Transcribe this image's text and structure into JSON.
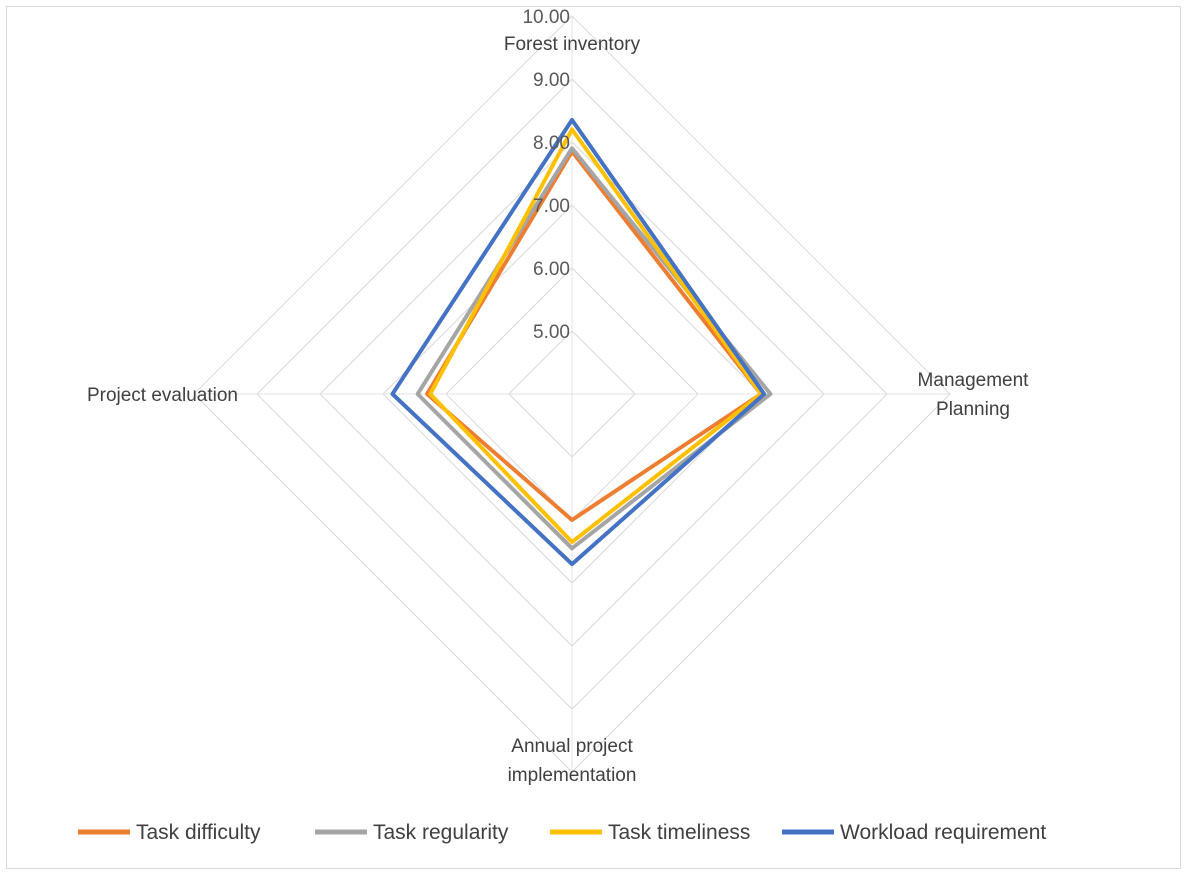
{
  "chart_data": {
    "type": "radar",
    "title": "",
    "axes": [
      {
        "label_lines": [
          "Forest inventory"
        ]
      },
      {
        "label_lines": [
          "Management",
          "Planning"
        ]
      },
      {
        "label_lines": [
          "Annual project",
          "implementation"
        ]
      },
      {
        "label_lines": [
          "Project evaluation"
        ]
      }
    ],
    "r_range": [
      4.0,
      10.0
    ],
    "ticks": [
      "5.00",
      "6.00",
      "7.00",
      "8.00",
      "9.00",
      "10.00"
    ],
    "tick_values": [
      5,
      6,
      7,
      8,
      9,
      10
    ],
    "grid": true,
    "legend_position": "bottom",
    "series": [
      {
        "name": "Task difficulty",
        "color": "#ED7D31",
        "values": [
          7.85,
          7.0,
          6.0,
          6.3
        ]
      },
      {
        "name": "Task regularity",
        "color": "#A5A5A5",
        "values": [
          7.9,
          7.15,
          6.45,
          6.45
        ]
      },
      {
        "name": "Task timeliness",
        "color": "#FFC000",
        "values": [
          8.2,
          7.0,
          6.35,
          6.25
        ]
      },
      {
        "name": "Workload requirement",
        "color": "#4472C4",
        "values": [
          8.35,
          7.05,
          6.7,
          6.85
        ]
      }
    ]
  }
}
